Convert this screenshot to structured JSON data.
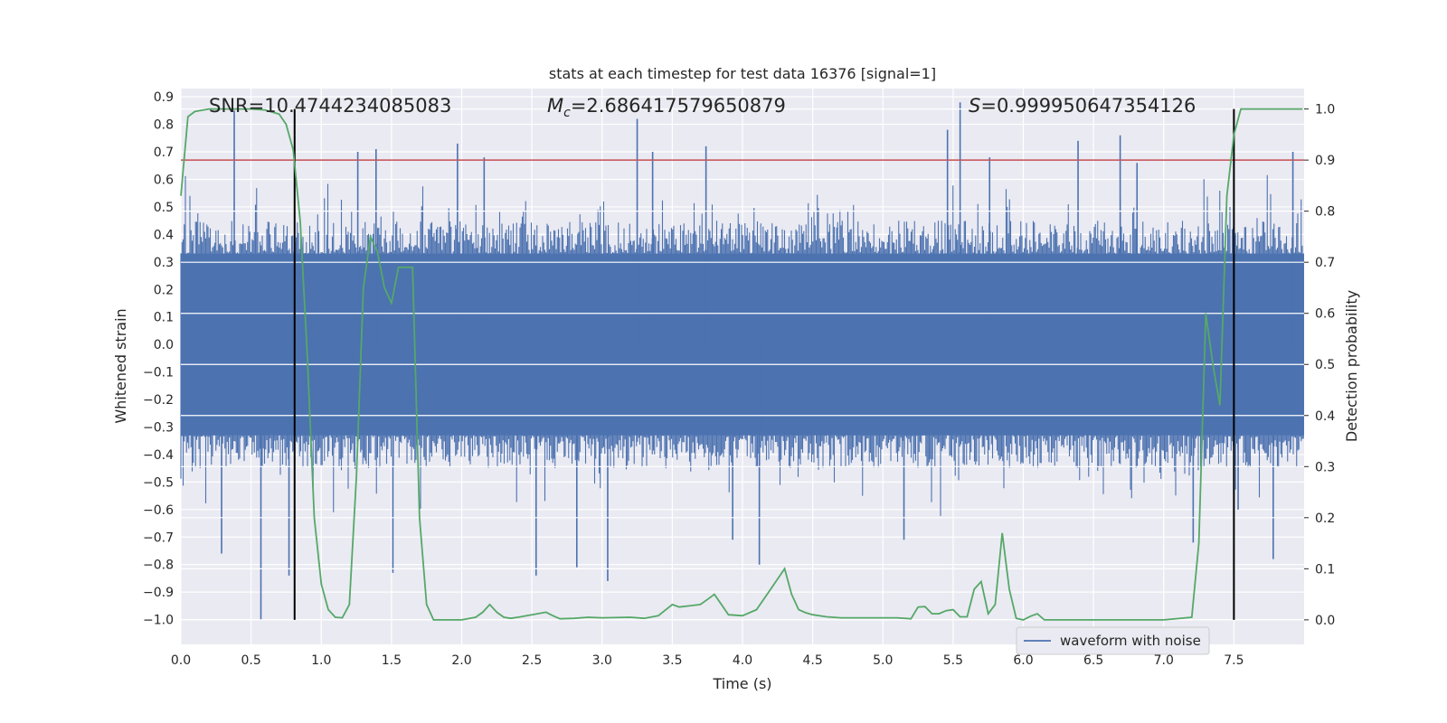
{
  "chart_data": {
    "type": "line",
    "title": "stats at each timestep for test data 16376 [signal=1]",
    "xlabel": "Time (s)",
    "ylabel_left": "Whitened strain",
    "ylabel_right": "Detection probability",
    "xlim": [
      0.0,
      8.0
    ],
    "ylim_left": [
      -1.09,
      0.93
    ],
    "ylim_right": [
      -0.048,
      1.04
    ],
    "xticks": [
      "0.0",
      "0.5",
      "1.0",
      "1.5",
      "2.0",
      "2.5",
      "3.0",
      "3.5",
      "4.0",
      "4.5",
      "5.0",
      "5.5",
      "6.0",
      "6.5",
      "7.0",
      "7.5"
    ],
    "yticks_left": [
      "0.9",
      "0.8",
      "0.7",
      "0.6",
      "0.5",
      "0.4",
      "0.3",
      "0.2",
      "0.1",
      "0.0",
      "−0.1",
      "−0.2",
      "−0.3",
      "−0.4",
      "−0.5",
      "−0.6",
      "−0.7",
      "−0.8",
      "−0.9",
      "−1.0"
    ],
    "yticks_right": [
      "1.0",
      "0.9",
      "0.8",
      "0.7",
      "0.6",
      "0.5",
      "0.4",
      "0.3",
      "0.2",
      "0.1",
      "0.0"
    ],
    "annotations": {
      "snr": "SNR=10.4744234085083",
      "mc_symbol": "M",
      "mc_sub": "c",
      "mc_value": "=2.686417579650879",
      "s_symbol": "S",
      "s_value": "=0.999950647354126"
    },
    "threshold": {
      "value": 0.9,
      "axis": "right",
      "color": "#c44e52"
    },
    "vlines": [
      0.81,
      7.5
    ],
    "legend": {
      "label": "waveform with noise",
      "location": "lower-right"
    },
    "series": [
      {
        "name": "waveform with noise",
        "axis": "left",
        "color": "#4c72b0",
        "style": "dense-noise",
        "core_amplitude": 0.33,
        "typical_peak": 0.45,
        "spikes": [
          {
            "x": 0.38,
            "y": 0.85
          },
          {
            "x": 0.57,
            "y": -1.0
          },
          {
            "x": 0.77,
            "y": -0.84
          },
          {
            "x": 0.29,
            "y": -0.76
          },
          {
            "x": 1.26,
            "y": 0.7
          },
          {
            "x": 1.39,
            "y": 0.71
          },
          {
            "x": 1.51,
            "y": -0.83
          },
          {
            "x": 1.97,
            "y": 0.73
          },
          {
            "x": 2.16,
            "y": 0.68
          },
          {
            "x": 2.53,
            "y": -0.84
          },
          {
            "x": 2.82,
            "y": -0.81
          },
          {
            "x": 3.04,
            "y": -0.86
          },
          {
            "x": 3.25,
            "y": 0.82
          },
          {
            "x": 3.36,
            "y": 0.7
          },
          {
            "x": 3.74,
            "y": 0.72
          },
          {
            "x": 3.93,
            "y": -0.71
          },
          {
            "x": 4.12,
            "y": -0.8
          },
          {
            "x": 5.15,
            "y": -0.71
          },
          {
            "x": 5.46,
            "y": 0.78
          },
          {
            "x": 5.55,
            "y": 0.88
          },
          {
            "x": 5.76,
            "y": 0.68
          },
          {
            "x": 6.39,
            "y": 0.74
          },
          {
            "x": 6.69,
            "y": 0.76
          },
          {
            "x": 6.81,
            "y": 0.66
          },
          {
            "x": 7.21,
            "y": -0.72
          },
          {
            "x": 7.53,
            "y": -0.6
          },
          {
            "x": 7.78,
            "y": -0.78
          },
          {
            "x": 7.92,
            "y": 0.7
          }
        ]
      },
      {
        "name": "detection probability",
        "axis": "right",
        "color": "#55a868",
        "x": [
          0.0,
          0.05,
          0.1,
          0.2,
          0.3,
          0.4,
          0.5,
          0.6,
          0.7,
          0.75,
          0.8,
          0.85,
          0.9,
          0.95,
          1.0,
          1.05,
          1.1,
          1.15,
          1.2,
          1.25,
          1.3,
          1.35,
          1.4,
          1.45,
          1.5,
          1.55,
          1.6,
          1.65,
          1.7,
          1.75,
          1.8,
          1.9,
          2.0,
          2.1,
          2.15,
          2.2,
          2.25,
          2.3,
          2.35,
          2.4,
          2.5,
          2.6,
          2.65,
          2.7,
          2.8,
          2.9,
          3.0,
          3.2,
          3.3,
          3.4,
          3.5,
          3.55,
          3.7,
          3.75,
          3.8,
          3.85,
          3.9,
          4.0,
          4.1,
          4.2,
          4.3,
          4.35,
          4.4,
          4.45,
          4.5,
          4.6,
          4.7,
          4.8,
          5.0,
          5.1,
          5.2,
          5.25,
          5.3,
          5.35,
          5.4,
          5.45,
          5.5,
          5.55,
          5.6,
          5.65,
          5.7,
          5.75,
          5.8,
          5.85,
          5.9,
          5.95,
          6.0,
          6.05,
          6.1,
          6.15,
          6.2,
          6.25,
          6.3,
          6.35,
          6.4,
          6.45,
          6.5,
          6.6,
          6.8,
          7.0,
          7.2,
          7.25,
          7.3,
          7.35,
          7.4,
          7.45,
          7.5,
          7.55,
          7.6,
          7.99
        ],
        "y": [
          0.83,
          0.985,
          0.995,
          1.0,
          1.0,
          1.0,
          1.0,
          0.998,
          0.99,
          0.97,
          0.92,
          0.78,
          0.52,
          0.2,
          0.07,
          0.02,
          0.005,
          0.004,
          0.03,
          0.28,
          0.65,
          0.75,
          0.72,
          0.65,
          0.62,
          0.69,
          0.69,
          0.69,
          0.2,
          0.03,
          0.0,
          0.0,
          0.0,
          0.005,
          0.015,
          0.03,
          0.015,
          0.005,
          0.003,
          0.005,
          0.01,
          0.015,
          0.008,
          0.002,
          0.003,
          0.005,
          0.004,
          0.005,
          0.003,
          0.008,
          0.03,
          0.025,
          0.03,
          0.04,
          0.05,
          0.03,
          0.01,
          0.008,
          0.02,
          0.06,
          0.1,
          0.05,
          0.02,
          0.014,
          0.01,
          0.006,
          0.004,
          0.004,
          0.004,
          0.004,
          0.002,
          0.025,
          0.026,
          0.012,
          0.012,
          0.018,
          0.02,
          0.006,
          0.006,
          0.06,
          0.075,
          0.012,
          0.03,
          0.17,
          0.06,
          0.003,
          0.0,
          0.007,
          0.012,
          0.0,
          0.0,
          0.0,
          0.0,
          0.0,
          0.0,
          0.0,
          0.0,
          0.0,
          0.0,
          0.0,
          0.005,
          0.15,
          0.6,
          0.5,
          0.42,
          0.83,
          0.95,
          1.0,
          1.0,
          1.0
        ]
      }
    ]
  }
}
